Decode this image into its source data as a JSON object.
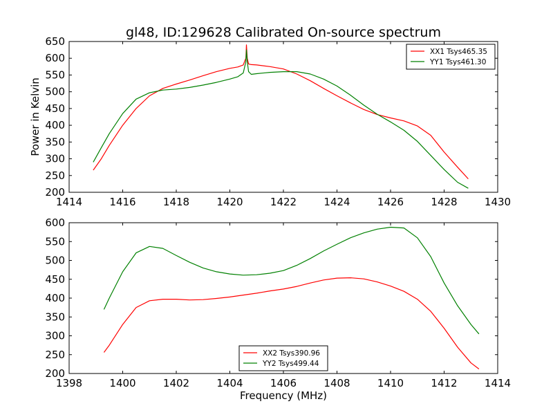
{
  "figure": {
    "title": "gl48, ID:129628 Calibrated On-source spectrum",
    "xlabel": "Frequency (MHz)"
  },
  "chart_data": [
    {
      "type": "line",
      "title": "gl48, ID:129628 Calibrated On-source spectrum",
      "xlabel": "",
      "ylabel": "Power in Kelvin",
      "xlim": [
        1414,
        1430
      ],
      "ylim": [
        200,
        650
      ],
      "xticks": [
        1414,
        1416,
        1418,
        1420,
        1422,
        1424,
        1426,
        1428,
        1430
      ],
      "yticks": [
        200,
        250,
        300,
        350,
        400,
        450,
        500,
        550,
        600,
        650
      ],
      "grid": false,
      "legend_position": "top-right",
      "series": [
        {
          "name": "XX1 Tsys465.35",
          "color": "#ff0000",
          "x": [
            1414.9,
            1415.2,
            1415.5,
            1416.0,
            1416.5,
            1417.0,
            1417.5,
            1418.0,
            1418.5,
            1419.0,
            1419.5,
            1420.0,
            1420.3,
            1420.5,
            1420.6,
            1420.62,
            1420.65,
            1420.7,
            1420.8,
            1421.0,
            1421.5,
            1422.0,
            1422.5,
            1423.0,
            1423.5,
            1424.0,
            1424.5,
            1425.0,
            1425.5,
            1426.0,
            1426.5,
            1427.0,
            1427.5,
            1428.0,
            1428.5,
            1428.9
          ],
          "y": [
            266,
            300,
            340,
            400,
            450,
            488,
            510,
            523,
            535,
            548,
            560,
            570,
            574,
            580,
            600,
            640,
            600,
            583,
            581,
            580,
            575,
            568,
            553,
            533,
            510,
            488,
            467,
            447,
            432,
            422,
            413,
            398,
            370,
            320,
            275,
            240
          ]
        },
        {
          "name": "YY1 Tsys461.30",
          "color": "#008000",
          "x": [
            1414.9,
            1415.2,
            1415.5,
            1416.0,
            1416.5,
            1417.0,
            1417.5,
            1418.0,
            1418.5,
            1419.0,
            1419.5,
            1420.0,
            1420.3,
            1420.5,
            1420.6,
            1420.62,
            1420.65,
            1420.7,
            1420.8,
            1421.0,
            1421.5,
            1422.0,
            1422.5,
            1423.0,
            1423.5,
            1424.0,
            1424.5,
            1425.0,
            1425.5,
            1426.0,
            1426.5,
            1427.0,
            1427.5,
            1428.0,
            1428.5,
            1428.9
          ],
          "y": [
            290,
            333,
            375,
            435,
            478,
            497,
            505,
            508,
            513,
            520,
            528,
            538,
            545,
            556,
            590,
            625,
            590,
            560,
            552,
            554,
            558,
            560,
            560,
            553,
            538,
            517,
            490,
            460,
            433,
            410,
            385,
            352,
            310,
            268,
            230,
            212
          ]
        }
      ]
    },
    {
      "type": "line",
      "title": "",
      "xlabel": "Frequency (MHz)",
      "ylabel": "",
      "xlim": [
        1398,
        1414
      ],
      "ylim": [
        200,
        600
      ],
      "xticks": [
        1398,
        1400,
        1402,
        1404,
        1406,
        1408,
        1410,
        1412,
        1414
      ],
      "yticks": [
        200,
        250,
        300,
        350,
        400,
        450,
        500,
        550,
        600
      ],
      "grid": false,
      "legend_position": "bottom-center",
      "series": [
        {
          "name": "XX2 Tsys390.96",
          "color": "#ff0000",
          "x": [
            1399.3,
            1399.5,
            1400.0,
            1400.5,
            1401.0,
            1401.5,
            1402.0,
            1402.5,
            1403.0,
            1403.5,
            1404.0,
            1404.5,
            1405.0,
            1405.5,
            1406.0,
            1406.5,
            1407.0,
            1407.5,
            1408.0,
            1408.5,
            1409.0,
            1409.5,
            1410.0,
            1410.5,
            1411.0,
            1411.5,
            1412.0,
            1412.5,
            1413.0,
            1413.3
          ],
          "y": [
            256,
            275,
            330,
            375,
            393,
            397,
            397,
            395,
            396,
            399,
            403,
            408,
            413,
            419,
            424,
            431,
            440,
            448,
            453,
            454,
            451,
            443,
            432,
            418,
            397,
            365,
            320,
            270,
            228,
            212
          ]
        },
        {
          "name": "YY2 Tsys499.44",
          "color": "#008000",
          "x": [
            1399.3,
            1399.5,
            1400.0,
            1400.5,
            1401.0,
            1401.5,
            1402.0,
            1402.5,
            1403.0,
            1403.5,
            1404.0,
            1404.5,
            1405.0,
            1405.5,
            1406.0,
            1406.5,
            1407.0,
            1407.5,
            1408.0,
            1408.5,
            1409.0,
            1409.5,
            1410.0,
            1410.5,
            1411.0,
            1411.5,
            1412.0,
            1412.5,
            1413.0,
            1413.3
          ],
          "y": [
            370,
            400,
            470,
            520,
            537,
            532,
            513,
            495,
            480,
            470,
            464,
            461,
            462,
            466,
            473,
            487,
            505,
            525,
            543,
            560,
            573,
            583,
            588,
            586,
            560,
            510,
            440,
            380,
            330,
            305
          ]
        }
      ]
    }
  ]
}
